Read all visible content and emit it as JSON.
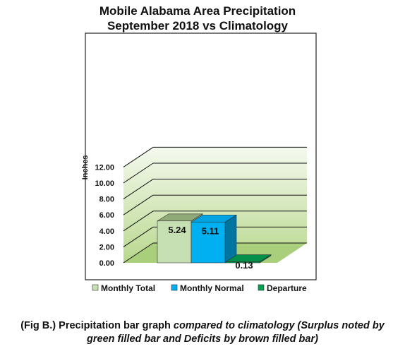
{
  "chart_data": {
    "type": "bar",
    "title": "Mobile Alabama Area Precipitation",
    "subtitle": "September 2018 vs Climatology",
    "ylabel": "Inches",
    "xlabel": "",
    "ylim": [
      0,
      12
    ],
    "yticks": [
      "0.00",
      "2.00",
      "4.00",
      "6.00",
      "8.00",
      "10.00",
      "12.00"
    ],
    "grid": true,
    "legend_position": "bottom",
    "series": [
      {
        "name": "Monthly Total",
        "value": 5.24,
        "label": "5.24",
        "color": "#c6e0b4"
      },
      {
        "name": "Monthly Normal",
        "value": 5.11,
        "label": "5.11",
        "color": "#00b0f0"
      },
      {
        "name": "Departure",
        "value": 0.13,
        "label": "0.13",
        "color": "#00a050"
      }
    ]
  },
  "caption": {
    "part1": "(Fig B.) Precipitation bar graph ",
    "part2_italic": "compared to climatology (Surplus noted by",
    "line2_italic": "green filled bar and Deficits by brown filled bar)"
  }
}
